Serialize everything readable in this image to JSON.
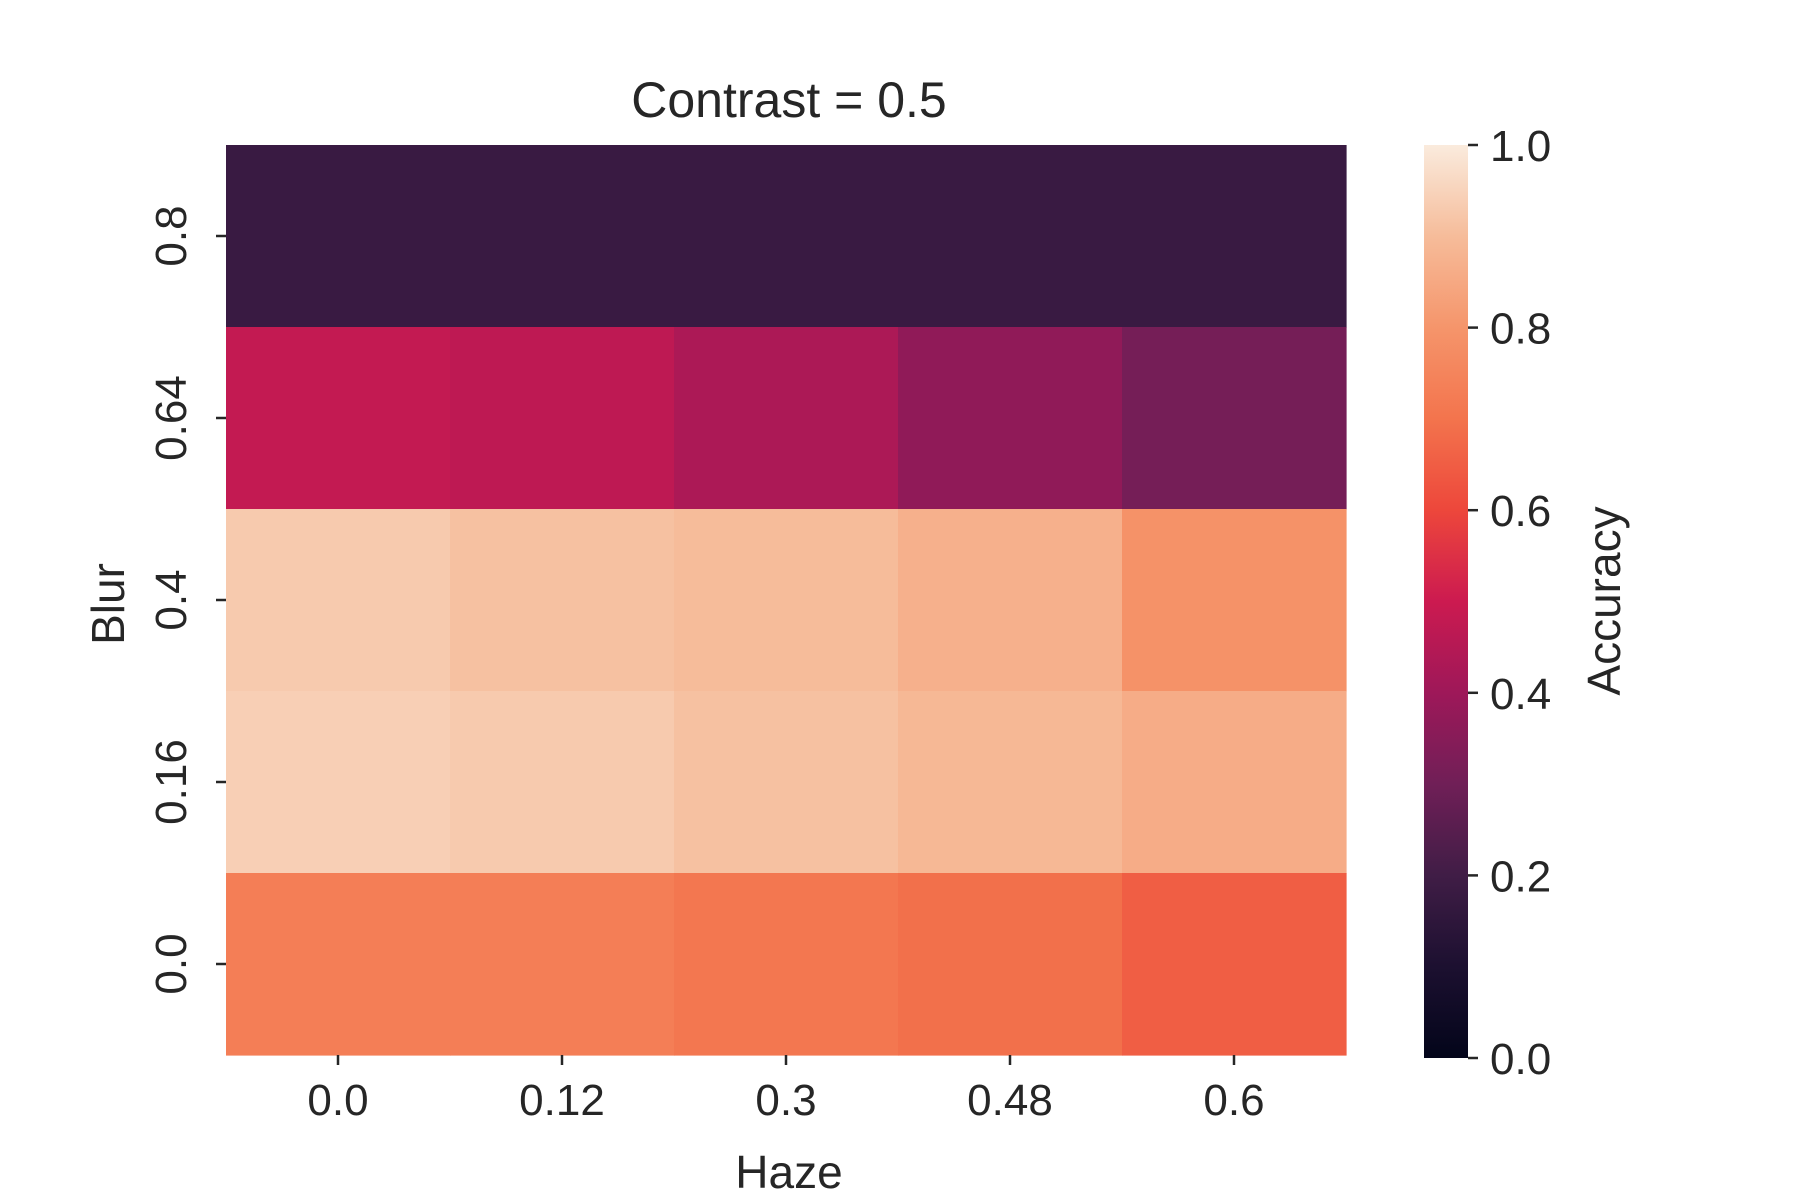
{
  "chart_data": {
    "type": "heatmap",
    "title": "Contrast = 0.5",
    "xlabel": "Haze",
    "ylabel": "Blur",
    "x_categories": [
      "0.0",
      "0.12",
      "0.3",
      "0.48",
      "0.6"
    ],
    "y_categories": [
      "0.8",
      "0.64",
      "0.4",
      "0.16",
      "0.0"
    ],
    "values": [
      [
        0.18,
        0.18,
        0.18,
        0.18,
        0.18
      ],
      [
        0.48,
        0.47,
        0.43,
        0.37,
        0.31
      ],
      [
        0.93,
        0.91,
        0.9,
        0.87,
        0.79
      ],
      [
        0.94,
        0.93,
        0.91,
        0.89,
        0.86
      ],
      [
        0.73,
        0.73,
        0.71,
        0.69,
        0.65
      ]
    ],
    "colorbar": {
      "label": "Accuracy",
      "range": [
        0.0,
        1.0
      ],
      "ticks": [
        "0.0",
        "0.2",
        "0.4",
        "0.6",
        "0.8",
        "1.0"
      ],
      "colormap": "rocket"
    }
  }
}
